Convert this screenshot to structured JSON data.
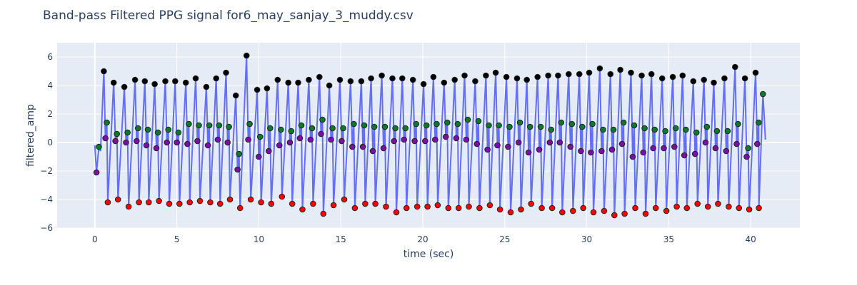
{
  "chart_data": {
    "type": "line",
    "title": "Band-pass Filtered PPG signal for6_may_sanjay_3_muddy.csv",
    "xlabel": "time (sec)",
    "ylabel": "filtered_amp",
    "xlim": [
      -2.3,
      43
    ],
    "ylim": [
      -6,
      7
    ],
    "x_ticks": [
      0,
      5,
      10,
      15,
      20,
      25,
      30,
      35,
      40
    ],
    "y_ticks": [
      -6,
      -4,
      -2,
      0,
      2,
      4,
      6
    ],
    "grid": true,
    "legend": "none",
    "colors": {
      "plot_bg": "#e5ecf6",
      "grid": "#ffffff",
      "signal": "#636efa",
      "systolic_peak": "#000000",
      "diastolic_peak": "#0a7a2a",
      "notch": "#7a0fa8",
      "trough": "#ff0000",
      "text": "#2a3f5f"
    },
    "beat_times": [
      0.55,
      1.15,
      1.8,
      2.45,
      3.05,
      3.65,
      4.3,
      4.9,
      5.55,
      6.15,
      6.8,
      7.4,
      8.0,
      8.6,
      9.25,
      9.9,
      10.5,
      11.15,
      11.8,
      12.4,
      13.05,
      13.7,
      14.3,
      14.95,
      15.6,
      16.25,
      16.85,
      17.5,
      18.15,
      18.75,
      19.4,
      20.05,
      20.65,
      21.3,
      21.95,
      22.55,
      23.2,
      23.85,
      24.45,
      25.1,
      25.75,
      26.35,
      27.0,
      27.65,
      28.25,
      28.9,
      29.55,
      30.15,
      30.8,
      31.45,
      32.05,
      32.7,
      33.35,
      33.95,
      34.6,
      35.25,
      35.85,
      36.5,
      37.15,
      37.75,
      38.4,
      39.05,
      39.65,
      40.3
    ],
    "systolic_peaks": [
      5.0,
      4.2,
      3.9,
      4.4,
      4.3,
      4.1,
      4.3,
      4.3,
      4.2,
      4.5,
      3.9,
      4.5,
      4.9,
      3.3,
      6.1,
      3.7,
      3.8,
      4.4,
      4.2,
      4.2,
      4.4,
      4.6,
      4.0,
      4.4,
      4.3,
      4.3,
      4.5,
      4.7,
      4.5,
      4.5,
      4.4,
      4.1,
      4.6,
      4.2,
      4.4,
      4.7,
      4.3,
      4.7,
      4.9,
      4.6,
      4.5,
      4.4,
      4.6,
      4.7,
      4.7,
      4.8,
      4.8,
      4.9,
      5.2,
      4.8,
      5.1,
      4.9,
      4.7,
      4.8,
      4.5,
      4.6,
      4.7,
      4.3,
      4.4,
      4.2,
      4.5,
      5.3,
      4.5,
      4.9
    ],
    "diastolic_peaks": [
      1.4,
      0.6,
      0.7,
      1.0,
      0.9,
      0.7,
      0.9,
      0.7,
      1.3,
      1.2,
      1.2,
      1.2,
      1.1,
      -0.8,
      1.3,
      0.4,
      1.0,
      0.9,
      0.8,
      1.2,
      1.0,
      1.6,
      1.0,
      1.0,
      1.3,
      1.2,
      1.1,
      1.1,
      1.0,
      1.0,
      1.3,
      1.2,
      1.3,
      1.4,
      1.3,
      1.6,
      1.5,
      1.2,
      1.2,
      1.1,
      1.4,
      1.1,
      1.1,
      0.9,
      1.4,
      1.3,
      1.1,
      1.3,
      0.9,
      0.9,
      1.4,
      1.2,
      1.0,
      0.9,
      0.8,
      1.0,
      0.9,
      0.7,
      1.1,
      0.8,
      0.8,
      1.3,
      -0.4,
      1.4
    ],
    "notches": [
      0.3,
      0.1,
      0.0,
      0.1,
      -0.2,
      -0.4,
      0.0,
      0.0,
      -0.1,
      0.1,
      -0.2,
      0.2,
      0.0,
      -1.9,
      0.2,
      -1.0,
      -0.6,
      -0.2,
      0.0,
      0.3,
      0.2,
      0.6,
      0.2,
      0.1,
      -0.3,
      -0.3,
      -0.6,
      -0.4,
      0.1,
      0.2,
      0.1,
      0.1,
      0.2,
      0.4,
      0.3,
      0.2,
      -0.1,
      -0.5,
      -0.2,
      -0.3,
      0.0,
      -0.7,
      -0.5,
      0.0,
      0.0,
      -0.3,
      -0.6,
      -0.7,
      -0.6,
      -0.5,
      -0.1,
      -1.0,
      -0.7,
      -0.4,
      -0.4,
      -0.3,
      -0.9,
      -0.8,
      0.0,
      -0.4,
      -0.6,
      -0.1,
      -1.0,
      -0.1
    ],
    "troughs": [
      -4.2,
      -4.0,
      -4.5,
      -4.2,
      -4.2,
      -4.1,
      -4.3,
      -4.3,
      -4.2,
      -4.1,
      -4.2,
      -4.3,
      -4.0,
      -4.6,
      -4.0,
      -4.2,
      -4.3,
      -3.8,
      -4.3,
      -4.7,
      -4.3,
      -5.0,
      -4.4,
      -4.0,
      -4.6,
      -4.3,
      -4.3,
      -4.5,
      -4.9,
      -4.6,
      -4.5,
      -4.5,
      -4.4,
      -4.6,
      -4.6,
      -4.5,
      -4.6,
      -4.4,
      -4.7,
      -4.9,
      -4.7,
      -4.3,
      -4.6,
      -4.6,
      -4.9,
      -4.8,
      -4.6,
      -4.9,
      -4.8,
      -5.1,
      -5.0,
      -4.6,
      -5.0,
      -4.6,
      -4.8,
      -4.5,
      -4.6,
      -4.3,
      -4.5,
      -4.3,
      -4.5,
      -4.6,
      -4.7,
      -4.4
    ],
    "start": {
      "t": 0.0,
      "value": -0.2
    },
    "first_trough": {
      "t": 0.1,
      "value": -2.1
    },
    "first_diastolic": {
      "t": 0.25,
      "value": -0.3
    },
    "first_notch": {
      "t": 0.35,
      "value": -0.6
    },
    "end_trough": {
      "t": 40.5,
      "value": -4.6
    },
    "end_peak": {
      "t": 40.75,
      "value": 3.4
    },
    "end": {
      "t": 40.9,
      "value": 0.2
    }
  }
}
